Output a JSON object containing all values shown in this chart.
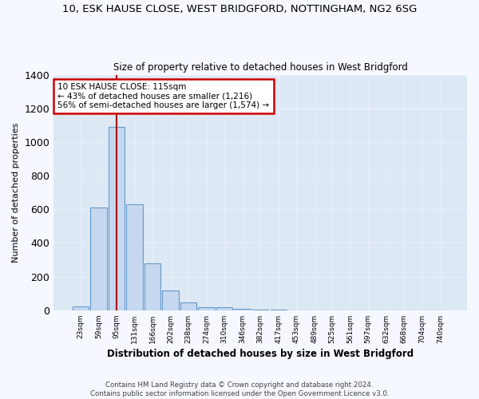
{
  "title_line1": "10, ESK HAUSE CLOSE, WEST BRIDGFORD, NOTTINGHAM, NG2 6SG",
  "title_line2": "Size of property relative to detached houses in West Bridgford",
  "xlabel": "Distribution of detached houses by size in West Bridgford",
  "ylabel": "Number of detached properties",
  "bar_color": "#c5d8ef",
  "bar_edgecolor": "#6699cc",
  "background_color": "#dde8f5",
  "grid_color": "#e8eef8",
  "fig_background": "#f5f8ff",
  "categories": [
    "23sqm",
    "59sqm",
    "95sqm",
    "131sqm",
    "166sqm",
    "202sqm",
    "238sqm",
    "274sqm",
    "310sqm",
    "346sqm",
    "382sqm",
    "417sqm",
    "453sqm",
    "489sqm",
    "525sqm",
    "561sqm",
    "597sqm",
    "632sqm",
    "668sqm",
    "704sqm",
    "740sqm"
  ],
  "values": [
    25,
    610,
    1090,
    630,
    280,
    120,
    45,
    20,
    20,
    10,
    5,
    2,
    1,
    0,
    0,
    0,
    0,
    0,
    0,
    0,
    0
  ],
  "ylim": [
    0,
    1400
  ],
  "yticks": [
    0,
    200,
    400,
    600,
    800,
    1000,
    1200,
    1400
  ],
  "marker_color": "#aa0000",
  "annotation_title": "10 ESK HAUSE CLOSE: 115sqm",
  "annotation_line1": "← 43% of detached houses are smaller (1,216)",
  "annotation_line2": "56% of semi-detached houses are larger (1,574) →",
  "annotation_box_color": "#ffffff",
  "annotation_box_edgecolor": "#cc0000",
  "footer_line1": "Contains HM Land Registry data © Crown copyright and database right 2024.",
  "footer_line2": "Contains public sector information licensed under the Open Government Licence v3.0."
}
